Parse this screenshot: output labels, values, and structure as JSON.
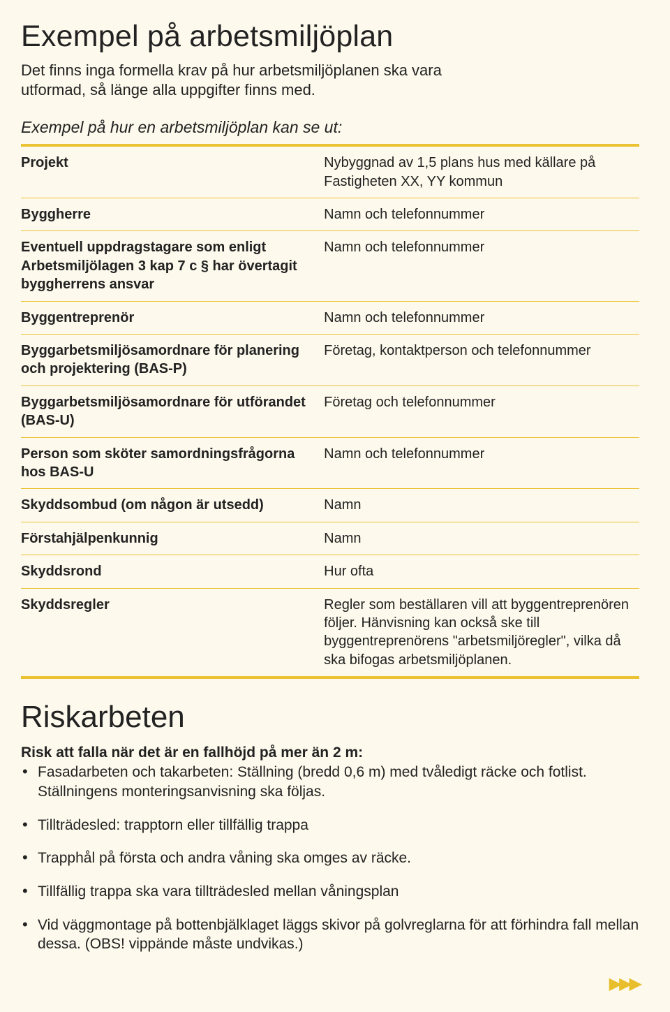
{
  "colors": {
    "background": "#fdf9ec",
    "rule": "#eac233",
    "text": "#222222",
    "arrows": "#e9be2b"
  },
  "header": {
    "title": "Exempel på arbetsmiljöplan",
    "intro": "Det finns inga formella krav på hur arbetsmiljöplanen ska vara utformad, så länge alla uppgifter finns med."
  },
  "box": {
    "title": "Exempel på hur en arbetsmiljöplan kan se ut:",
    "rows": [
      {
        "left": "Projekt",
        "right": "Nybyggnad av 1,5 plans hus med källare på Fastigheten XX, YY kommun"
      },
      {
        "left": "Byggherre",
        "right": "Namn och telefonnummer"
      },
      {
        "left": "Eventuell uppdragstagare som enligt Arbetsmiljölagen 3 kap 7 c § har övertagit byggherrens ansvar",
        "right": "Namn och telefonnummer"
      },
      {
        "left": "Byggentreprenör",
        "right": "Namn och telefonnummer"
      },
      {
        "left": "Byggarbetsmiljösamordnare för planering och projektering (BAS-P)",
        "right": "Företag, kontaktperson och telefonnummer"
      },
      {
        "left": "Byggarbetsmiljösamordnare för utförandet (BAS-U)",
        "right": "Företag och telefonnummer"
      },
      {
        "left": "Person som sköter samordningsfrågorna hos BAS-U",
        "right": "Namn och telefonnummer"
      },
      {
        "left": "Skyddsombud (om någon är utsedd)",
        "right": "Namn"
      },
      {
        "left": "Förstahjälpenkunnig",
        "right": "Namn"
      },
      {
        "left": "Skyddsrond",
        "right": "Hur ofta"
      },
      {
        "left": "Skyddsregler",
        "right": "Regler som beställaren vill att byggentreprenören följer. Hänvisning kan också ske till byggentreprenörens \"arbetsmiljöregler\", vilka då ska bifogas arbetsmiljöplanen."
      }
    ]
  },
  "risk": {
    "title": "Riskarbeten",
    "subheading": "Risk att falla när det är en fallhöjd på mer än 2 m:",
    "items": [
      "Fasadarbeten och takarbeten: Ställning (bredd 0,6 m) med tvåledigt räcke och fotlist. Ställningens monteringsanvisning ska följas.",
      "Tillträdesled: trapptorn eller tillfällig trappa",
      "Trapphål på första och andra våning ska omges av räcke.",
      "Tillfällig trappa ska vara tillträdesled mellan våningsplan",
      "Vid väggmontage på bottenbjälklaget läggs skivor på golvreglarna för att förhindra fall mellan dessa. (OBS! vippände måste undvikas.)"
    ]
  },
  "footer_arrows": "▶▶▶"
}
